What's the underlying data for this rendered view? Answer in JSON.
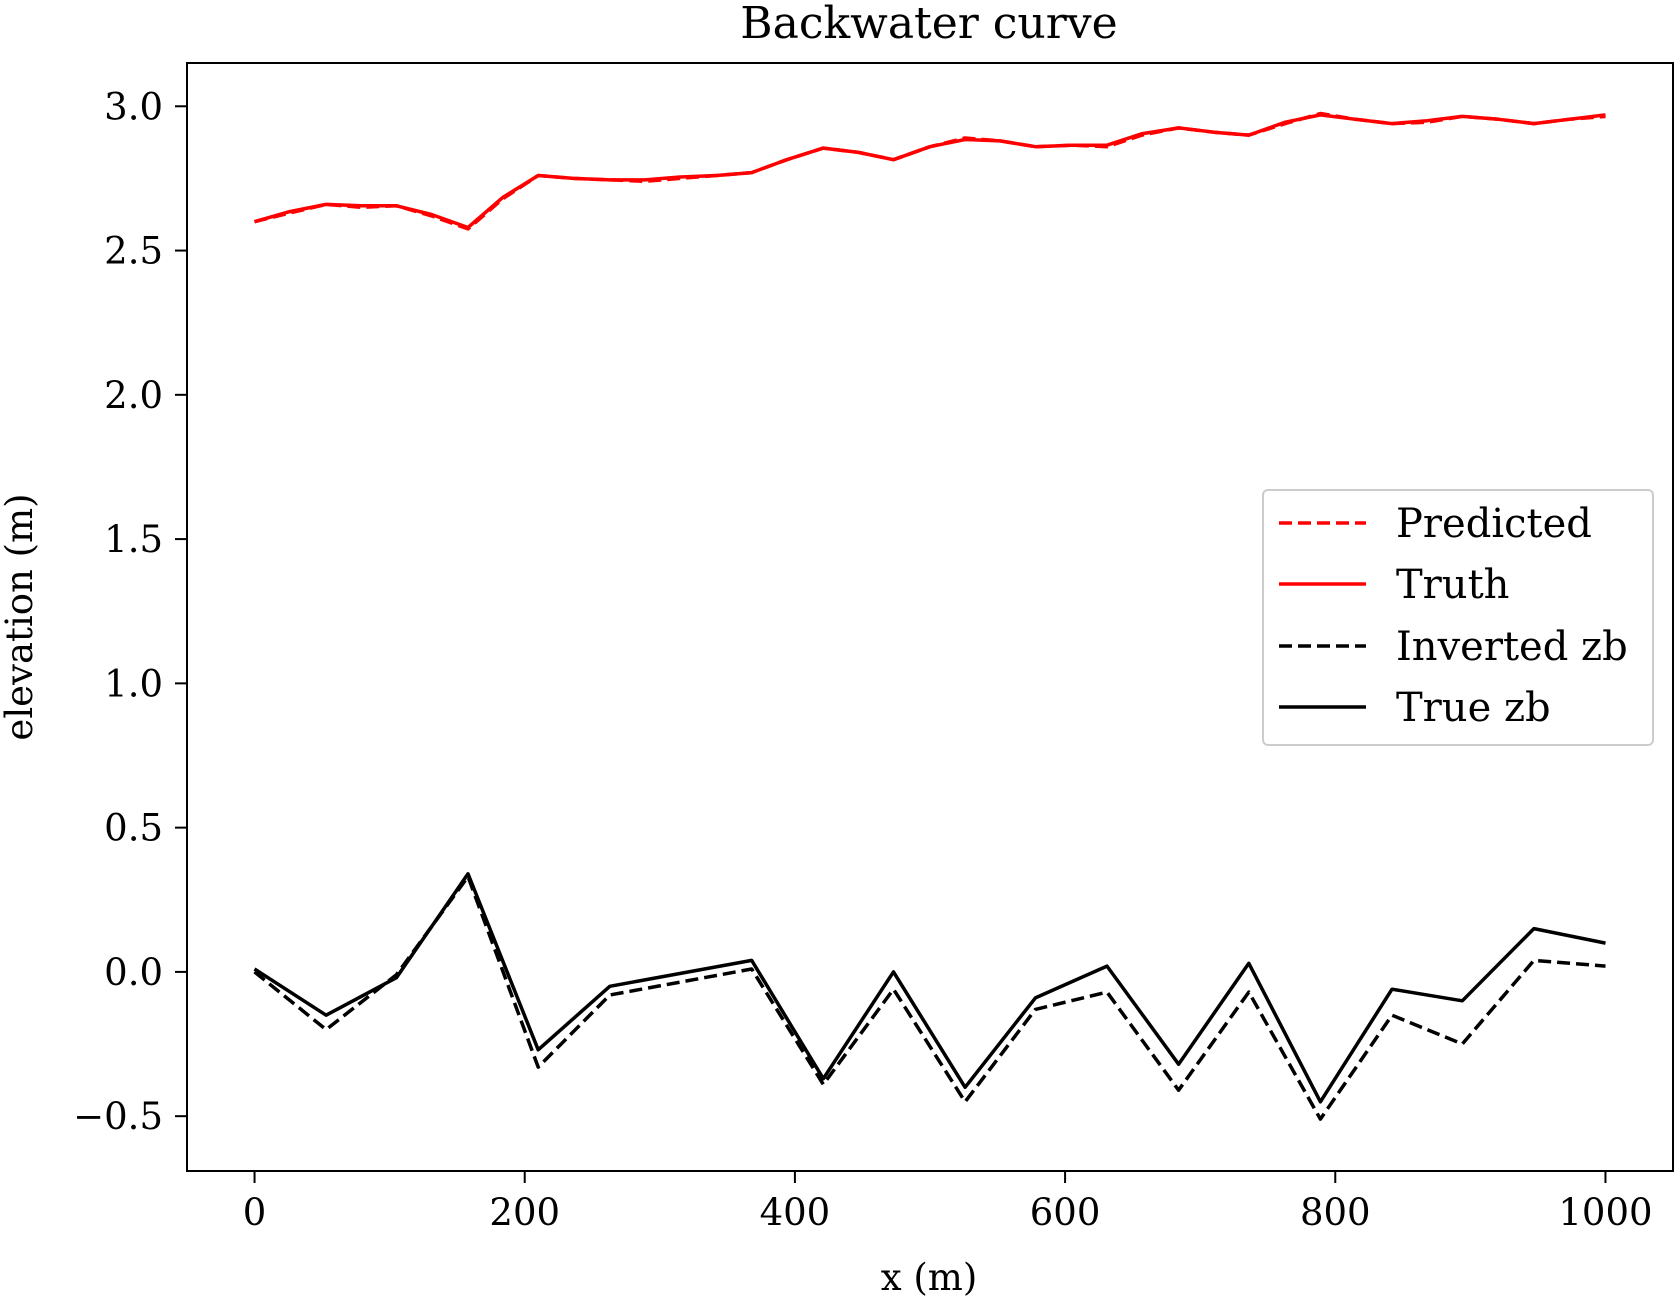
{
  "chart_data": {
    "type": "line",
    "title": "Backwater curve",
    "xlabel": "x (m)",
    "ylabel": "elevation (m)",
    "xlim": [
      -50,
      1050
    ],
    "ylim": [
      -0.69,
      3.15
    ],
    "xticks": [
      0,
      200,
      400,
      600,
      800,
      1000
    ],
    "xtick_labels": [
      "0",
      "200",
      "400",
      "600",
      "800",
      "1000"
    ],
    "yticks": [
      -0.5,
      0.0,
      0.5,
      1.0,
      1.5,
      2.0,
      2.5,
      3.0
    ],
    "ytick_labels": [
      "−0.5",
      "0.0",
      "0.5",
      "1.0",
      "1.5",
      "2.0",
      "2.5",
      "3.0"
    ],
    "grid": false,
    "legend_position": "center-right",
    "series": [
      {
        "name": "Predicted",
        "color": "#ff0000",
        "style": "dashed",
        "x": [
          0,
          26,
          53,
          79,
          105,
          131,
          158,
          184,
          210,
          236,
          263,
          289,
          315,
          342,
          368,
          394,
          421,
          447,
          473,
          500,
          526,
          552,
          578,
          605,
          631,
          657,
          684,
          710,
          736,
          763,
          789,
          815,
          842,
          868,
          894,
          921,
          947,
          973,
          1000
        ],
        "y": [
          2.6,
          2.63,
          2.66,
          2.65,
          2.655,
          2.62,
          2.575,
          2.68,
          2.76,
          2.75,
          2.745,
          2.74,
          2.75,
          2.76,
          2.77,
          2.815,
          2.855,
          2.84,
          2.815,
          2.86,
          2.89,
          2.88,
          2.86,
          2.865,
          2.86,
          2.9,
          2.925,
          2.91,
          2.9,
          2.94,
          2.975,
          2.955,
          2.94,
          2.945,
          2.965,
          2.955,
          2.94,
          2.955,
          2.965
        ]
      },
      {
        "name": "Truth",
        "color": "#ff0000",
        "style": "solid",
        "x": [
          0,
          26,
          53,
          79,
          105,
          131,
          158,
          184,
          210,
          236,
          263,
          289,
          315,
          342,
          368,
          394,
          421,
          447,
          473,
          500,
          526,
          552,
          578,
          605,
          631,
          657,
          684,
          710,
          736,
          763,
          789,
          815,
          842,
          868,
          894,
          921,
          947,
          973,
          1000
        ],
        "y": [
          2.6,
          2.635,
          2.66,
          2.655,
          2.655,
          2.625,
          2.58,
          2.685,
          2.76,
          2.75,
          2.745,
          2.745,
          2.755,
          2.76,
          2.77,
          2.815,
          2.855,
          2.84,
          2.815,
          2.86,
          2.885,
          2.88,
          2.86,
          2.865,
          2.865,
          2.905,
          2.925,
          2.91,
          2.9,
          2.945,
          2.97,
          2.955,
          2.94,
          2.95,
          2.965,
          2.955,
          2.94,
          2.955,
          2.97
        ]
      },
      {
        "name": "Inverted zb",
        "color": "#000000",
        "style": "dashed",
        "x": [
          0,
          53,
          105,
          158,
          210,
          263,
          368,
          421,
          473,
          526,
          578,
          631,
          684,
          736,
          789,
          842,
          894,
          947,
          1000
        ],
        "y": [
          0.0,
          -0.2,
          -0.01,
          0.33,
          -0.33,
          -0.08,
          0.01,
          -0.39,
          -0.06,
          -0.45,
          -0.13,
          -0.07,
          -0.41,
          -0.07,
          -0.51,
          -0.15,
          -0.25,
          0.04,
          0.02
        ]
      },
      {
        "name": "True zb",
        "color": "#000000",
        "style": "solid",
        "x": [
          0,
          53,
          105,
          158,
          210,
          263,
          368,
          421,
          473,
          526,
          578,
          631,
          684,
          736,
          789,
          842,
          894,
          947,
          1000
        ],
        "y": [
          0.01,
          -0.15,
          -0.02,
          0.34,
          -0.27,
          -0.05,
          0.04,
          -0.37,
          0.0,
          -0.4,
          -0.09,
          0.02,
          -0.32,
          0.03,
          -0.45,
          -0.06,
          -0.1,
          0.15,
          0.1
        ]
      }
    ]
  }
}
